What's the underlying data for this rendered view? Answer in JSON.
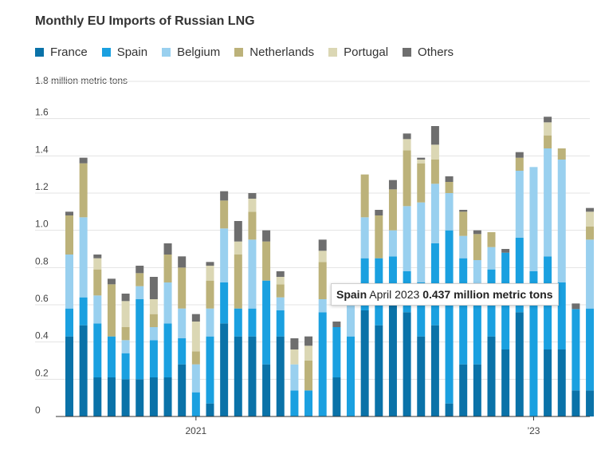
{
  "chart_data": {
    "type": "bar",
    "stacked": true,
    "title": "Monthly EU Imports of Russian LNG",
    "unit_label": "1.8 million metric tons",
    "ylim": [
      0,
      1.8
    ],
    "y_ticks": [
      "0",
      "0.2",
      "0.4",
      "0.6",
      "0.8",
      "1.0",
      "1.2",
      "1.4",
      "1.6"
    ],
    "x_labels": [
      {
        "label": "2021",
        "at_bar": 9
      },
      {
        "label": "’23",
        "at_bar": 33
      }
    ],
    "legend_position": "top",
    "series": [
      {
        "name": "France",
        "color": "#0a72a8",
        "values": [
          0.43,
          0.49,
          0.21,
          0.21,
          0.2,
          0.2,
          0.21,
          0.21,
          0.28,
          0.0,
          0.07,
          0.5,
          0.43,
          0.43,
          0.28,
          0.43,
          0.0,
          0.0,
          0.0,
          0.21,
          0.0,
          0.57,
          0.49,
          0.64,
          0.56,
          0.43,
          0.49,
          0.07,
          0.28,
          0.28,
          0.43,
          0.36,
          0.56,
          0.0,
          0.36,
          0.36,
          0.14,
          0.14
        ]
      },
      {
        "name": "Spain",
        "color": "#1aa0e0",
        "values": [
          0.15,
          0.15,
          0.29,
          0.22,
          0.14,
          0.43,
          0.2,
          0.29,
          0.14,
          0.13,
          0.36,
          0.22,
          0.15,
          0.15,
          0.45,
          0.14,
          0.14,
          0.14,
          0.56,
          0.27,
          0.43,
          0.28,
          0.36,
          0.22,
          0.22,
          0.29,
          0.44,
          0.93,
          0.57,
          0.37,
          0.36,
          0.52,
          0.4,
          0.78,
          0.5,
          0.36,
          0.437,
          0.44
        ]
      },
      {
        "name": "Belgium",
        "color": "#99d0ef",
        "values": [
          0.29,
          0.43,
          0.15,
          0.0,
          0.07,
          0.07,
          0.07,
          0.22,
          0.16,
          0.15,
          0.15,
          0.29,
          0.0,
          0.37,
          0.0,
          0.07,
          0.14,
          0.0,
          0.07,
          0.0,
          0.22,
          0.22,
          0.0,
          0.14,
          0.35,
          0.43,
          0.32,
          0.2,
          0.12,
          0.19,
          0.12,
          0.0,
          0.36,
          0.56,
          0.58,
          0.66,
          0.0,
          0.37
        ]
      },
      {
        "name": "Netherlands",
        "color": "#bcb27a",
        "values": [
          0.21,
          0.29,
          0.14,
          0.28,
          0.07,
          0.07,
          0.07,
          0.15,
          0.22,
          0.07,
          0.15,
          0.15,
          0.29,
          0.15,
          0.21,
          0.07,
          0.0,
          0.16,
          0.2,
          0.0,
          0.0,
          0.23,
          0.23,
          0.22,
          0.3,
          0.21,
          0.13,
          0.06,
          0.13,
          0.14,
          0.08,
          0.0,
          0.07,
          0.0,
          0.07,
          0.06,
          0.0,
          0.07
        ]
      },
      {
        "name": "Portugal",
        "color": "#dbd7b4",
        "values": [
          0.0,
          0.0,
          0.06,
          0.0,
          0.14,
          0.0,
          0.08,
          0.0,
          0.0,
          0.16,
          0.08,
          0.0,
          0.07,
          0.07,
          0.0,
          0.04,
          0.08,
          0.08,
          0.06,
          0.0,
          0.0,
          0.0,
          0.0,
          0.0,
          0.06,
          0.02,
          0.08,
          0.0,
          0.0,
          0.0,
          0.0,
          0.0,
          0.0,
          0.0,
          0.07,
          0.0,
          0.0,
          0.08
        ]
      },
      {
        "name": "Others",
        "color": "#6e6e6e",
        "values": [
          0.02,
          0.03,
          0.02,
          0.03,
          0.04,
          0.04,
          0.12,
          0.06,
          0.06,
          0.04,
          0.02,
          0.05,
          0.11,
          0.03,
          0.06,
          0.03,
          0.06,
          0.05,
          0.06,
          0.03,
          0.06,
          0.0,
          0.03,
          0.05,
          0.03,
          0.01,
          0.1,
          0.03,
          0.01,
          0.02,
          0.0,
          0.02,
          0.03,
          0.0,
          0.03,
          0.0,
          0.03,
          0.02
        ]
      }
    ]
  },
  "tooltip": {
    "series": "Spain",
    "period": "April 2023",
    "value": "0.437 million metric tons"
  }
}
